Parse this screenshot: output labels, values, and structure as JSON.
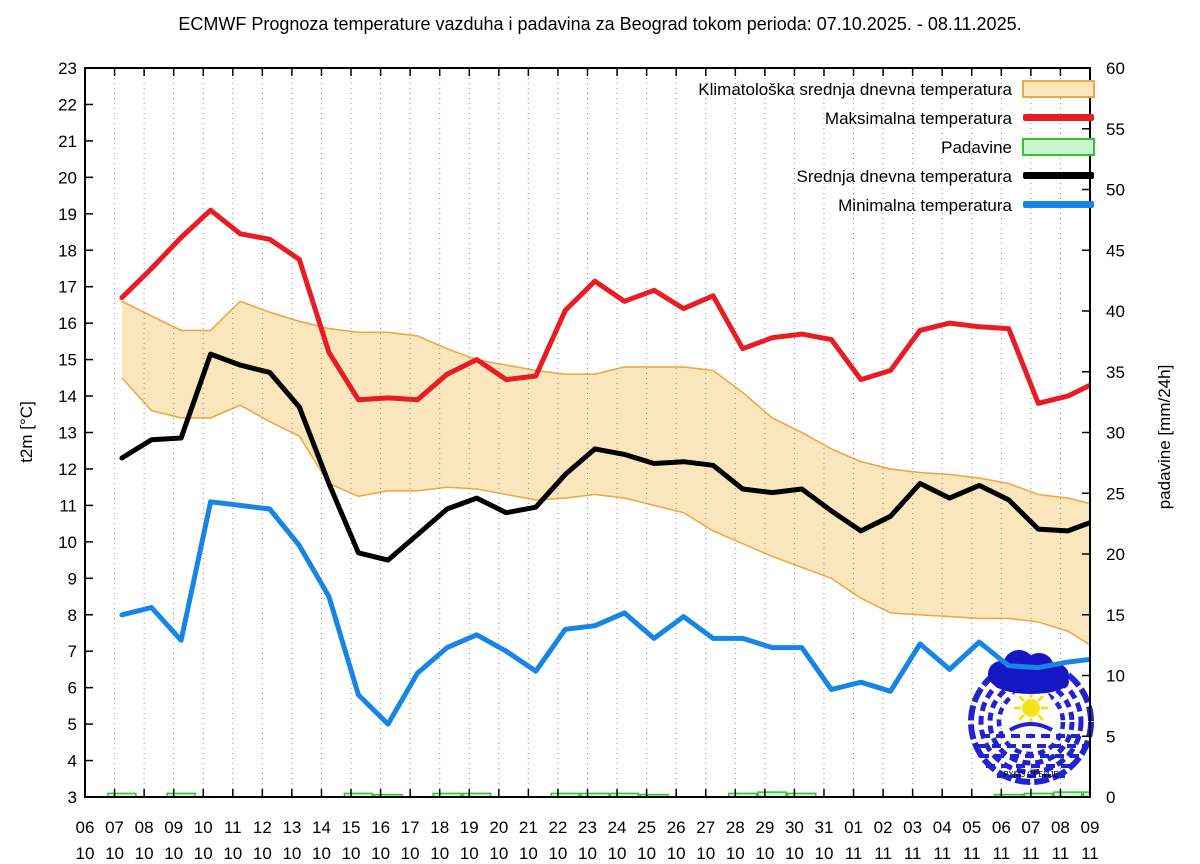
{
  "title": "ECMWF Prognoza temperature vazduha i padavina za Beograd tokom perioda: 07.10.2025. - 08.11.2025.",
  "axes": {
    "y_left_label": "t2m [°C]",
    "y_right_label": "padavine [mm/24h]",
    "y_left_min": 3,
    "y_left_max": 23,
    "y_left_step": 1,
    "y_right_min": 0,
    "y_right_max": 60,
    "y_right_step": 5
  },
  "legend": [
    {
      "label": "Klimatološka srednja dnevna temperatura",
      "swatch": "band"
    },
    {
      "label": "Maksimalna temperatura",
      "swatch": "line-red"
    },
    {
      "label": "Padavine",
      "swatch": "box-green"
    },
    {
      "label": "Srednja dnevna temperatura",
      "swatch": "line-black"
    },
    {
      "label": "Minimalna temperatura",
      "swatch": "line-blue"
    }
  ],
  "colors": {
    "band_fill": "#fae6bc",
    "band_edge": "#f0a845",
    "max_temp": "#ea1c23",
    "mean_temp": "#000000",
    "min_temp": "#1685e6",
    "precip_fill": "#cdf5cd",
    "precip_edge": "#2fc52f",
    "grid": "#8c8c8c",
    "frame": "#000000",
    "logo_blue": "#2323cd",
    "logo_cloud": "#1616c4",
    "logo_sun": "#f2e31b"
  },
  "logo_text": "РХМЗ СРБИЈЕ",
  "chart_data": {
    "type": "line",
    "title": "ECMWF Prognoza temperature vazduha i padavina za Beograd tokom perioda: 07.10.2025. - 08.11.2025.",
    "xlabel": "",
    "ylabel": "t2m [°C]",
    "y2label": "padavine [mm/24h]",
    "ylim_temp": [
      3,
      23
    ],
    "ylim_precip": [
      0,
      60
    ],
    "grid": "vertical-dotted",
    "legend_position": "top-right-inside",
    "x_tick_labels_day": [
      "06",
      "07",
      "08",
      "09",
      "10",
      "11",
      "12",
      "13",
      "14",
      "15",
      "16",
      "17",
      "18",
      "19",
      "20",
      "21",
      "22",
      "23",
      "24",
      "25",
      "26",
      "27",
      "28",
      "29",
      "30",
      "31",
      "01",
      "02",
      "03",
      "04",
      "05",
      "06",
      "07",
      "08",
      "09"
    ],
    "x_tick_labels_month": [
      "10",
      "10",
      "10",
      "10",
      "10",
      "10",
      "10",
      "10",
      "10",
      "10",
      "10",
      "10",
      "10",
      "10",
      "10",
      "10",
      "10",
      "10",
      "10",
      "10",
      "10",
      "10",
      "10",
      "10",
      "10",
      "10",
      "11",
      "11",
      "11",
      "11",
      "11",
      "11",
      "11",
      "11",
      "11"
    ],
    "dates": [
      "07.10",
      "08.10",
      "09.10",
      "10.10",
      "11.10",
      "12.10",
      "13.10",
      "14.10",
      "15.10",
      "16.10",
      "17.10",
      "18.10",
      "19.10",
      "20.10",
      "21.10",
      "22.10",
      "23.10",
      "24.10",
      "25.10",
      "26.10",
      "27.10",
      "28.10",
      "29.10",
      "30.10",
      "31.10",
      "01.11",
      "02.11",
      "03.11",
      "04.11",
      "05.11",
      "06.11",
      "07.11",
      "08.11",
      "09.11"
    ],
    "series": [
      {
        "name": "Klimatoloska srednja dnevna temperatura (gornja granica)",
        "unit": "°C",
        "values": [
          16.6,
          16.2,
          15.8,
          15.8,
          16.6,
          16.3,
          16.05,
          15.85,
          15.75,
          15.75,
          15.65,
          15.3,
          15.0,
          14.85,
          14.7,
          14.6,
          14.6,
          14.8,
          14.8,
          14.8,
          14.7,
          14.1,
          13.4,
          13.0,
          12.55,
          12.2,
          12.0,
          11.9,
          11.85,
          11.75,
          11.6,
          11.3,
          11.2,
          11.0
        ]
      },
      {
        "name": "Klimatoloska srednja dnevna temperatura (donja granica)",
        "unit": "°C",
        "values": [
          14.5,
          13.6,
          13.4,
          13.4,
          13.75,
          13.3,
          12.9,
          11.6,
          11.25,
          11.4,
          11.4,
          11.5,
          11.45,
          11.3,
          11.15,
          11.2,
          11.3,
          11.2,
          11.0,
          10.8,
          10.3,
          9.95,
          9.6,
          9.3,
          9.0,
          8.45,
          8.05,
          8.0,
          7.95,
          7.9,
          7.9,
          7.8,
          7.55,
          7.05
        ]
      },
      {
        "name": "Maksimalna temperatura",
        "unit": "°C",
        "values": [
          16.7,
          17.5,
          18.35,
          19.1,
          18.45,
          18.3,
          17.75,
          15.2,
          13.9,
          13.95,
          13.9,
          14.6,
          15.0,
          14.45,
          14.55,
          16.35,
          17.15,
          16.6,
          16.9,
          16.4,
          16.75,
          15.3,
          15.6,
          15.7,
          15.55,
          14.45,
          14.7,
          15.8,
          16.0,
          15.9,
          15.85,
          13.8,
          14.0,
          14.4
        ]
      },
      {
        "name": "Srednja dnevna temperatura",
        "unit": "°C",
        "values": [
          12.3,
          12.8,
          12.85,
          15.15,
          14.85,
          14.65,
          13.7,
          11.6,
          9.7,
          9.5,
          10.2,
          10.9,
          11.2,
          10.8,
          10.95,
          11.85,
          12.55,
          12.4,
          12.15,
          12.2,
          12.1,
          11.45,
          11.35,
          11.45,
          10.85,
          10.3,
          10.7,
          11.6,
          11.2,
          11.55,
          11.15,
          10.35,
          10.3,
          10.6
        ]
      },
      {
        "name": "Minimalna temperatura",
        "unit": "°C",
        "values": [
          8.0,
          8.2,
          7.3,
          11.1,
          11.0,
          10.9,
          9.9,
          8.5,
          5.8,
          5.0,
          6.4,
          7.1,
          7.45,
          7.0,
          6.45,
          7.6,
          7.7,
          8.05,
          7.35,
          7.95,
          7.35,
          7.35,
          7.1,
          7.1,
          5.95,
          6.15,
          5.9,
          7.2,
          6.5,
          7.25,
          6.6,
          6.55,
          6.7,
          6.8
        ]
      },
      {
        "name": "Padavine",
        "unit": "mm/24h",
        "values": [
          0.3,
          0,
          0.3,
          0,
          0,
          0,
          0,
          0,
          0.3,
          0.2,
          0,
          0.3,
          0.3,
          0,
          0,
          0.3,
          0.3,
          0.3,
          0.2,
          0,
          0,
          0.3,
          0.4,
          0.3,
          0,
          0,
          0,
          0,
          0,
          0,
          0.2,
          0.3,
          0.4,
          0.4
        ]
      }
    ]
  }
}
